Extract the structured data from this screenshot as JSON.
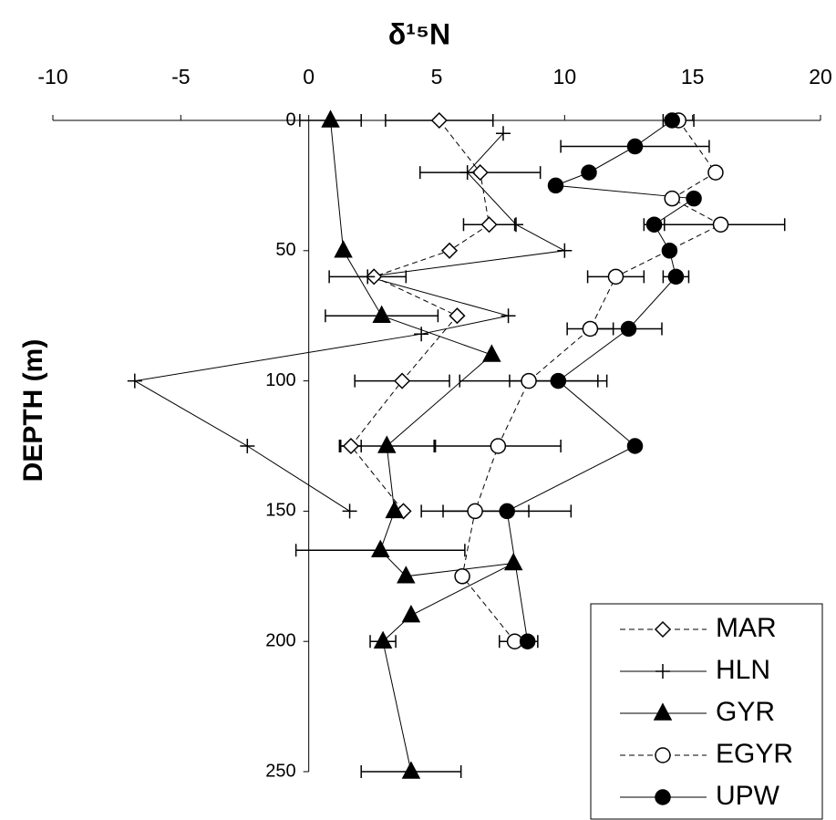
{
  "chart_data": {
    "type": "profile",
    "title": "δ¹⁵N",
    "y_label": "DEPTH (m)",
    "xlim": [
      -10,
      20
    ],
    "xticks": [
      -10,
      -5,
      0,
      5,
      10,
      15,
      20
    ],
    "ylim": [
      0,
      250
    ],
    "yticks": [
      0,
      50,
      100,
      150,
      200,
      250
    ],
    "y_reversed": true,
    "series": [
      {
        "name": "MAR",
        "marker": "diamond",
        "linestyle": "dashed",
        "color": "#000000",
        "depth": [
          0,
          20,
          40,
          50,
          60,
          75,
          100,
          125,
          150
        ],
        "values": [
          5.1,
          6.7,
          7.05,
          5.5,
          2.55,
          5.8,
          3.65,
          1.65,
          3.7
        ],
        "errors": [
          2.1,
          2.35,
          1.0,
          null,
          null,
          null,
          1.85,
          0.4,
          null
        ]
      },
      {
        "name": "HLN",
        "marker": "plus",
        "linestyle": "solid",
        "color": "#000000",
        "depth": [
          5,
          20,
          40,
          50,
          60,
          75,
          82,
          100,
          125,
          150
        ],
        "values": [
          7.6,
          6.2,
          8.1,
          10.0,
          2.3,
          7.8,
          4.4,
          -6.8,
          -2.4,
          1.6
        ],
        "errors": [
          null,
          null,
          null,
          null,
          1.5,
          null,
          null,
          null,
          null,
          null
        ]
      },
      {
        "name": "GYR",
        "marker": "triangle",
        "linestyle": "solid",
        "color": "#000000",
        "depth": [
          0,
          50,
          75,
          90,
          125,
          150,
          165,
          175,
          170,
          190,
          200,
          250
        ],
        "values": [
          0.85,
          1.35,
          2.85,
          7.15,
          3.05,
          3.35,
          2.8,
          3.8,
          8.0,
          4.0,
          2.9,
          4.0
        ],
        "errors": [
          1.2,
          null,
          2.2,
          null,
          1.85,
          null,
          3.3,
          null,
          null,
          null,
          0.5,
          1.95
        ]
      },
      {
        "name": "EGYR",
        "marker": "open-circle",
        "linestyle": "dashed",
        "color": "#000000",
        "depth": [
          0,
          20,
          30,
          40,
          60,
          80,
          100,
          125,
          150,
          175,
          200
        ],
        "values": [
          14.45,
          15.9,
          14.2,
          16.1,
          12.0,
          11.0,
          8.6,
          7.4,
          6.5,
          6.0,
          8.05
        ],
        "errors": [
          0.6,
          null,
          null,
          2.5,
          1.1,
          0.9,
          2.7,
          2.45,
          2.1,
          null,
          0.6
        ]
      },
      {
        "name": "UPW",
        "marker": "circle",
        "linestyle": "solid",
        "color": "#000000",
        "depth": [
          0,
          10,
          20,
          25,
          30,
          40,
          50,
          60,
          80,
          100,
          125,
          150,
          200
        ],
        "values": [
          14.2,
          12.75,
          10.95,
          9.65,
          15.05,
          13.5,
          14.1,
          14.35,
          12.5,
          9.75,
          12.75,
          7.75,
          8.55
        ],
        "errors": [
          null,
          2.9,
          null,
          null,
          null,
          0.4,
          null,
          0.5,
          1.3,
          1.9,
          null,
          2.5,
          0.4
        ]
      }
    ]
  }
}
